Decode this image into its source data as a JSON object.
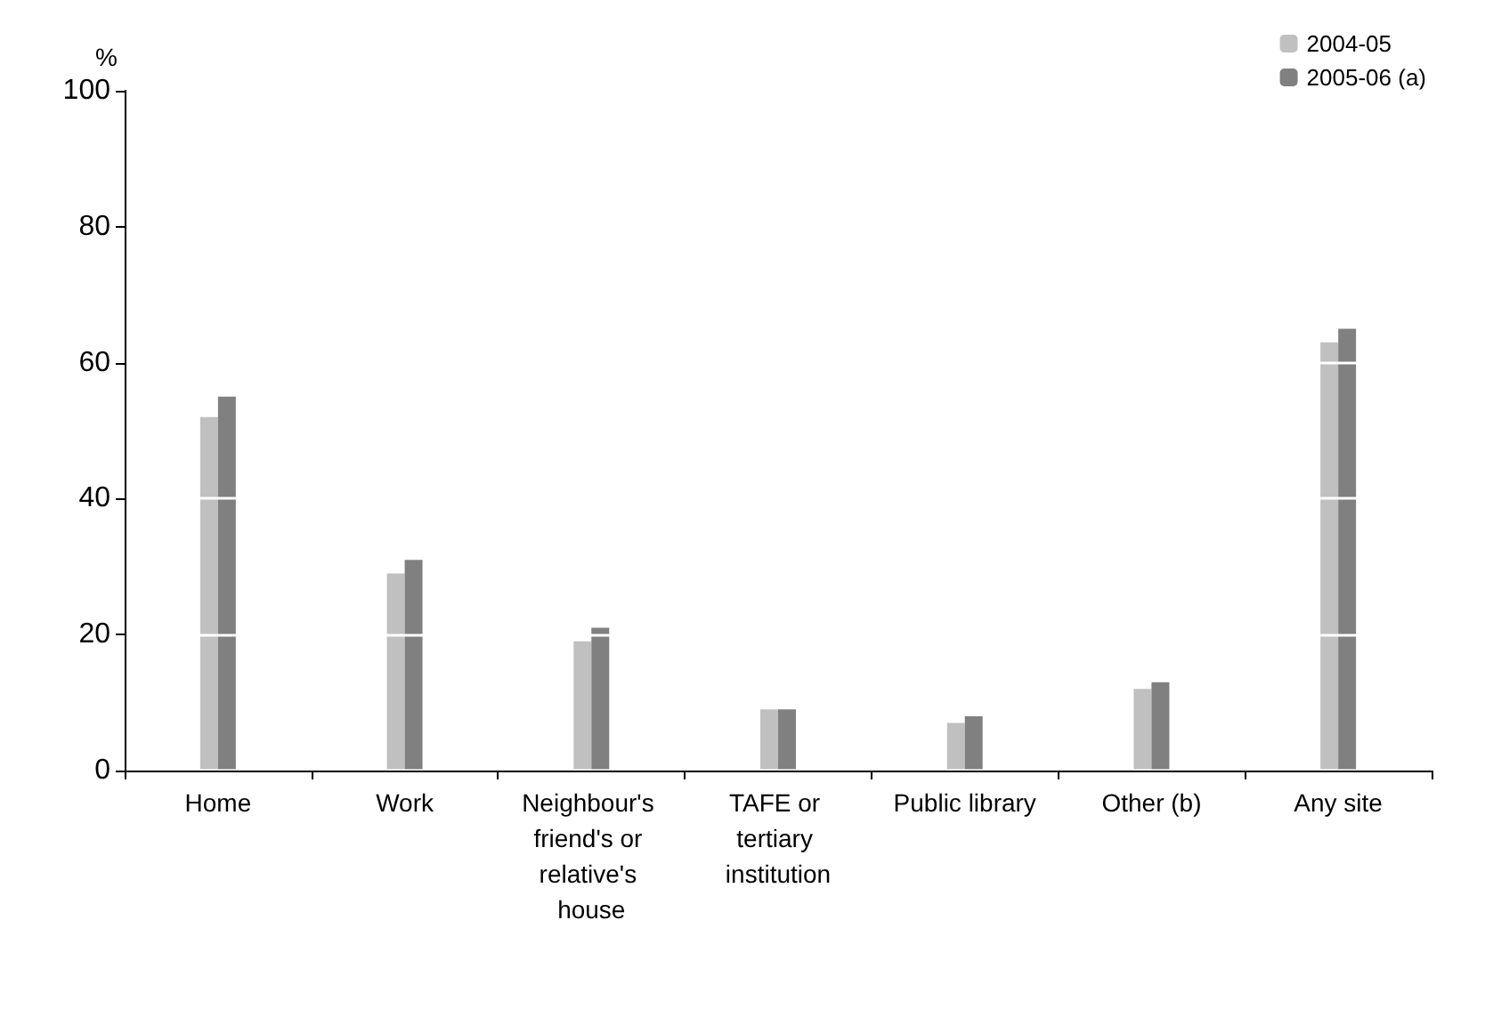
{
  "chart_data": {
    "type": "bar",
    "ylabel": "%",
    "categories": [
      "Home",
      "Work",
      "Neighbour's friend's or relative's house",
      "TAFE or tertiary institution",
      "Public library",
      "Other (b)",
      "Any site"
    ],
    "series": [
      {
        "name": "2004-05",
        "color": "#c0c0c0",
        "values": [
          52,
          29,
          19,
          9,
          7,
          12,
          63
        ]
      },
      {
        "name": "2005-06 (a)",
        "color": "#808080",
        "values": [
          55,
          31,
          21,
          9,
          8,
          13,
          65
        ]
      }
    ],
    "ylim": [
      0,
      100
    ],
    "yticks": [
      0,
      20,
      40,
      60,
      80,
      100
    ],
    "grid": "y",
    "legend": "top right"
  }
}
